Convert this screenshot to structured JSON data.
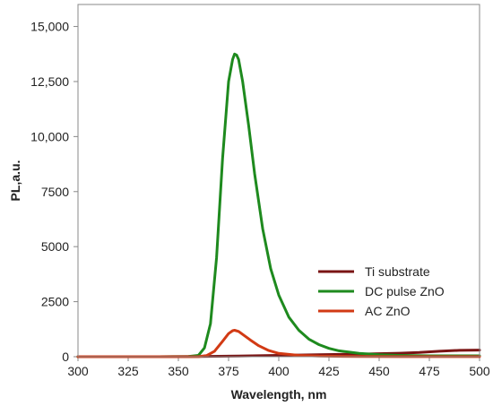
{
  "chart_data": {
    "type": "line",
    "xlabel": "Wavelength, nm",
    "ylabel": "PL,a.u.",
    "xlim": [
      300,
      500
    ],
    "ylim": [
      0,
      16000
    ],
    "x_ticks": [
      300,
      325,
      350,
      375,
      400,
      425,
      450,
      475,
      500
    ],
    "x_tick_labels": [
      "300",
      "325",
      "350",
      "375",
      "400",
      "425",
      "450",
      "475",
      "500"
    ],
    "y_ticks": [
      0,
      2500,
      5000,
      7500,
      10000,
      12500,
      15000
    ],
    "y_tick_labels": [
      "0",
      "2500",
      "5000",
      "7500",
      "10,000",
      "12,500",
      "15,000"
    ],
    "grid": false,
    "legend_position": "right",
    "series": [
      {
        "name": "Ti substrate",
        "color": "#7a1414",
        "x": [
          300,
          320,
          340,
          360,
          380,
          400,
          420,
          440,
          460,
          470,
          480,
          490,
          500
        ],
        "y": [
          0,
          0,
          0,
          10,
          30,
          60,
          90,
          120,
          160,
          190,
          250,
          290,
          300
        ]
      },
      {
        "name": "DC pulse ZnO",
        "color": "#1e8a1e",
        "x": [
          300,
          340,
          355,
          360,
          363,
          366,
          369,
          372,
          375,
          377,
          378,
          379,
          380,
          382,
          385,
          388,
          392,
          396,
          400,
          405,
          410,
          415,
          420,
          425,
          430,
          440,
          450,
          460,
          475,
          490,
          500
        ],
        "y": [
          0,
          0,
          10,
          60,
          400,
          1500,
          4500,
          9000,
          12500,
          13500,
          13750,
          13700,
          13500,
          12500,
          10500,
          8300,
          5800,
          4000,
          2800,
          1800,
          1200,
          800,
          550,
          380,
          270,
          150,
          90,
          60,
          40,
          40,
          40
        ]
      },
      {
        "name": "AC ZnO",
        "color": "#d23a14",
        "x": [
          300,
          350,
          360,
          364,
          368,
          372,
          375,
          377,
          378,
          380,
          383,
          386,
          390,
          395,
          400,
          410,
          420,
          440,
          460,
          480,
          500
        ],
        "y": [
          0,
          0,
          5,
          50,
          250,
          700,
          1050,
          1180,
          1200,
          1150,
          950,
          750,
          500,
          280,
          150,
          60,
          30,
          10,
          5,
          5,
          5
        ]
      }
    ]
  }
}
